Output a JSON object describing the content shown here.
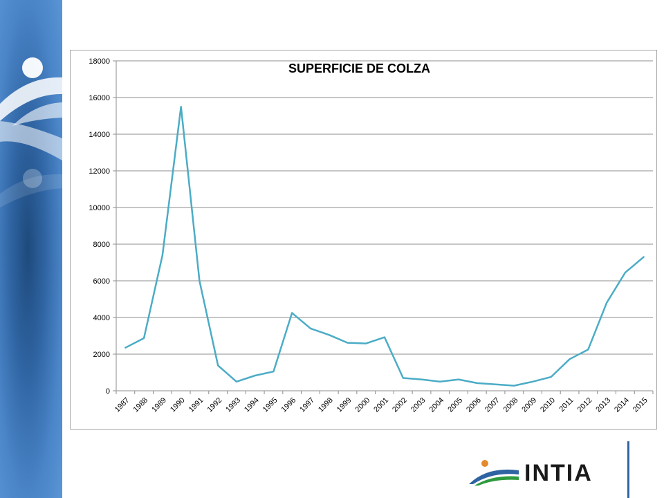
{
  "logo": {
    "text": "INTIA"
  },
  "colors": {
    "line": "#4bacc6",
    "grid": "#8c8c8c",
    "sidebar": "#3a74b6",
    "accent_blue": "#2f64a2",
    "accent_green": "#2e9a3e",
    "accent_orange": "#e58a2b"
  },
  "chart_data": {
    "type": "line",
    "title": "SUPERFICIE DE COLZA",
    "xlabel": "",
    "ylabel": "",
    "ylim": [
      0,
      18000
    ],
    "yticks": [
      0,
      2000,
      4000,
      6000,
      8000,
      10000,
      12000,
      14000,
      16000,
      18000
    ],
    "grid": true,
    "legend": false,
    "categories": [
      "1987",
      "1988",
      "1989",
      "1990",
      "1991",
      "1992",
      "1993",
      "1994",
      "1995",
      "1996",
      "1997",
      "1998",
      "1999",
      "2000",
      "2001",
      "2002",
      "2003",
      "2004",
      "2005",
      "2006",
      "2007",
      "2008",
      "2009",
      "2010",
      "2011",
      "2012",
      "2013",
      "2014",
      "2015"
    ],
    "series": [
      {
        "values": [
          2350,
          2870,
          7400,
          15500,
          6000,
          1380,
          500,
          830,
          1050,
          4250,
          3400,
          3050,
          2620,
          2580,
          2920,
          700,
          620,
          500,
          620,
          420,
          350,
          280,
          500,
          760,
          1730,
          2250,
          4800,
          6450,
          7300
        ]
      }
    ]
  }
}
